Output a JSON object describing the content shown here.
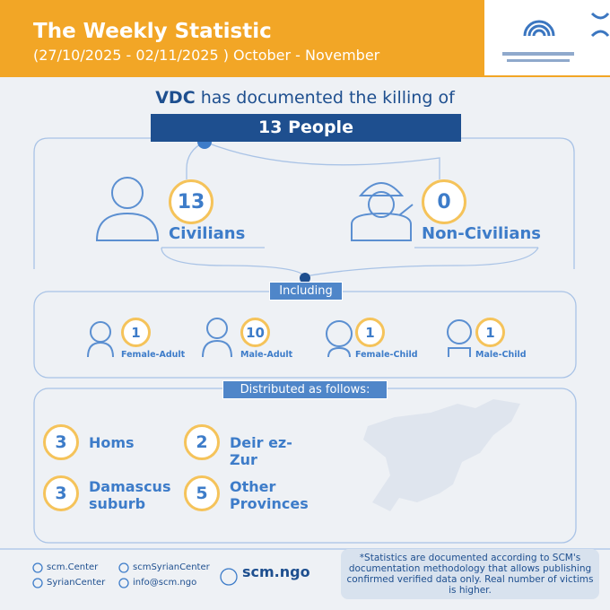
{
  "header": {
    "title": "The Weekly Statistic",
    "subtitle": "(27/10/2025 - 02/11/2025 ) October - November"
  },
  "intro": {
    "org": "VDC",
    "text": "has documented the killing of",
    "total": "13 People"
  },
  "split": [
    {
      "count": 13,
      "label": "Civilians"
    },
    {
      "count": 0,
      "label": "Non-Civilians"
    }
  ],
  "including": {
    "label": "Including",
    "groups": [
      {
        "count": 1,
        "label": "Female-Adult"
      },
      {
        "count": 10,
        "label": "Male-Adult"
      },
      {
        "count": 1,
        "label": "Female-Child"
      },
      {
        "count": 1,
        "label": "Male-Child"
      }
    ]
  },
  "distribution": {
    "label": "Distributed as follows:",
    "provinces": [
      {
        "count": 3,
        "name": "Homs"
      },
      {
        "count": 2,
        "name": "Deir ez-Zur"
      },
      {
        "count": 3,
        "name": "Damascus suburb"
      },
      {
        "count": 5,
        "name": "Other Provinces"
      }
    ]
  },
  "footer": {
    "social": [
      "scm.Center",
      "scmSyrianCenter",
      "SyrianCenter",
      "info@scm.ngo"
    ],
    "site": "scm.ngo",
    "note": "*Statistics are documented according to SCM's documentation methodology that allows publishing confirmed verified data only. Real number of victims is higher."
  }
}
